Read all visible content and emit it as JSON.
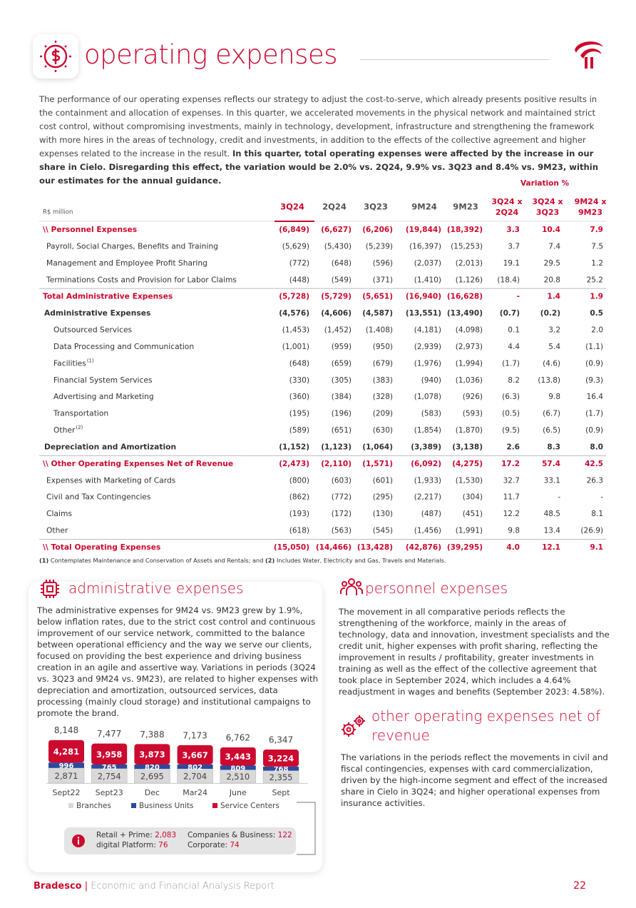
{
  "header": {
    "title": "operating expenses"
  },
  "intro": {
    "text": "The performance of our operating expenses reflects our strategy to adjust the cost-to-serve, which already presents positive results in the containment and allocation of expenses. In this quarter, we accelerated movements in the physical network and maintained strict cost control, without compromising investments, mainly in technology, development, infrastructure and strengthening the framework with more hires in the areas of technology, credit and investments, in addition to the effects of the collective agreement and higher expenses related to the increase in the result.",
    "bold": "In this quarter, total operating expenses were affected by the increase in our share in Cielo. Disregarding this effect, the variation would be 2.0% vs. 2Q24, 9.9% vs. 3Q23 and 8.4% vs. 9M23, within our estimates for the annual guidance."
  },
  "table": {
    "unit": "R$ million",
    "variation_label": "Variation %",
    "columns": [
      "3Q24",
      "2Q24",
      "3Q23",
      "9M24",
      "9M23"
    ],
    "variation_columns": [
      [
        "3Q24 x",
        "2Q24"
      ],
      [
        "3Q24 x",
        "3Q23"
      ],
      [
        "9M24 x",
        "9M23"
      ]
    ],
    "rows": [
      {
        "label": "\\\\ Personnel Expenses",
        "level": "section",
        "values": [
          "(6,849)",
          "(6,627)",
          "(6,206)",
          "(19,844)",
          "(18,392)",
          "3.3",
          "10.4",
          "7.9"
        ]
      },
      {
        "label": "Payroll, Social Charges, Benefits and Training",
        "level": "item",
        "values": [
          "(5,629)",
          "(5,430)",
          "(5,239)",
          "(16,397)",
          "(15,253)",
          "3.7",
          "7.4",
          "7.5"
        ]
      },
      {
        "label": "Management and Employee Profit Sharing",
        "level": "item",
        "values": [
          "(772)",
          "(648)",
          "(596)",
          "(2,037)",
          "(2,013)",
          "19.1",
          "29.5",
          "1.2"
        ]
      },
      {
        "label": "Terminations Costs and Provision for Labor Claims",
        "level": "item",
        "values": [
          "(448)",
          "(549)",
          "(371)",
          "(1,410)",
          "(1,126)",
          "(18.4)",
          "20.8",
          "25.2"
        ]
      },
      {
        "label": "Total Administrative Expenses",
        "level": "total",
        "values": [
          "(5,728)",
          "(5,729)",
          "(5,651)",
          "(16,940)",
          "(16,628)",
          "-",
          "1.4",
          "1.9"
        ]
      },
      {
        "label": "Administrative Expenses",
        "level": "group",
        "values": [
          "(4,576)",
          "(4,606)",
          "(4,587)",
          "(13,551)",
          "(13,490)",
          "(0.7)",
          "(0.2)",
          "0.5"
        ]
      },
      {
        "label": "Outsourced Services",
        "level": "subitem",
        "values": [
          "(1,453)",
          "(1,452)",
          "(1,408)",
          "(4,181)",
          "(4,098)",
          "0.1",
          "3.2",
          "2.0"
        ]
      },
      {
        "label": "Data Processing and Communication",
        "level": "subitem",
        "values": [
          "(1,001)",
          "(959)",
          "(950)",
          "(2,939)",
          "(2,973)",
          "4.4",
          "5.4",
          "(1.1)"
        ]
      },
      {
        "label": "Facilities",
        "note": "(1)",
        "level": "subitem",
        "values": [
          "(648)",
          "(659)",
          "(679)",
          "(1,976)",
          "(1,994)",
          "(1.7)",
          "(4.6)",
          "(0.9)"
        ]
      },
      {
        "label": "Financial System Services",
        "level": "subitem",
        "values": [
          "(330)",
          "(305)",
          "(383)",
          "(940)",
          "(1,036)",
          "8.2",
          "(13.8)",
          "(9.3)"
        ]
      },
      {
        "label": "Advertising and Marketing",
        "level": "subitem",
        "values": [
          "(360)",
          "(384)",
          "(328)",
          "(1,078)",
          "(926)",
          "(6.3)",
          "9.8",
          "16.4"
        ]
      },
      {
        "label": "Transportation",
        "level": "subitem",
        "values": [
          "(195)",
          "(196)",
          "(209)",
          "(583)",
          "(593)",
          "(0.5)",
          "(6.7)",
          "(1.7)"
        ]
      },
      {
        "label": "Other",
        "note": "(2)",
        "level": "subitem",
        "values": [
          "(589)",
          "(651)",
          "(630)",
          "(1,854)",
          "(1,870)",
          "(9.5)",
          "(6.5)",
          "(0.9)"
        ]
      },
      {
        "label": "Depreciation and Amortization",
        "level": "group",
        "values": [
          "(1,152)",
          "(1,123)",
          "(1,064)",
          "(3,389)",
          "(3,138)",
          "2.6",
          "8.3",
          "8.0"
        ]
      },
      {
        "label": "\\\\ Other Operating Expenses Net of Revenue",
        "level": "section",
        "values": [
          "(2,473)",
          "(2,110)",
          "(1,571)",
          "(6,092)",
          "(4,275)",
          "17.2",
          "57.4",
          "42.5"
        ]
      },
      {
        "label": "Expenses with Marketing of Cards",
        "level": "item",
        "values": [
          "(800)",
          "(603)",
          "(601)",
          "(1,933)",
          "(1,530)",
          "32.7",
          "33.1",
          "26.3"
        ]
      },
      {
        "label": "Civil and Tax Contingencies",
        "level": "item",
        "values": [
          "(862)",
          "(772)",
          "(295)",
          "(2,217)",
          "(304)",
          "11.7",
          "-",
          "-"
        ]
      },
      {
        "label": "Claims",
        "level": "item",
        "values": [
          "(193)",
          "(172)",
          "(130)",
          "(487)",
          "(451)",
          "12.2",
          "48.5",
          "8.1"
        ]
      },
      {
        "label": "Other",
        "level": "item",
        "values": [
          "(618)",
          "(563)",
          "(545)",
          "(1,456)",
          "(1,991)",
          "9.8",
          "13.4",
          "(26.9)"
        ]
      },
      {
        "label": "\\\\ Total Operating Expenses",
        "level": "section",
        "values": [
          "(15,050)",
          "(14,466)",
          "(13,428)",
          "(42,876)",
          "(39,295)",
          "4.0",
          "12.1",
          "9.1"
        ]
      }
    ],
    "footnote": [
      "(1)",
      " Contemplates Maintenance and Conservation of Assets and Rentals; and ",
      "(2)",
      " Includes Water, Electricity and Gas, Travels and Materials."
    ]
  },
  "administrative": {
    "title": "administrative expenses",
    "text": "The administrative expenses for 9M24 vs. 9M23 grew by 1.9%, below inflation rates, due to the strict cost control and continuous improvement of our service network, committed to the balance between operational efficiency and the way we serve our clients, focused on providing the best experience and driving business creation in an agile and assertive way. Variations in periods (3Q24 vs. 3Q23 and 9M24 vs. 9M23), are related to higher expenses with depreciation and amortization, outsourced services, data processing (mainly cloud storage) and institutional campaigns to promote the brand."
  },
  "chart_data": {
    "type": "stacked_bar",
    "categories": [
      "Sept22",
      "Sept23",
      "Dec",
      "Mar24",
      "June",
      "Sept"
    ],
    "series": [
      {
        "name": "Branches",
        "color": "#d9d9d9",
        "values": [
          2871,
          2754,
          2695,
          2704,
          2510,
          2355
        ],
        "value_labels": [
          "2,871",
          "2,754",
          "2,695",
          "2,704",
          "2,510",
          "2,355"
        ]
      },
      {
        "name": "Business Units",
        "color": "#2b4a9b",
        "values": [
          996,
          765,
          820,
          802,
          809,
          768
        ]
      },
      {
        "name": "Service Centers",
        "color": "#cc092f",
        "values": [
          4281,
          3958,
          3873,
          3667,
          3443,
          3224
        ],
        "value_labels": [
          "4,281",
          "3,958",
          "3,873",
          "3,667",
          "3,443",
          "3,224"
        ]
      }
    ],
    "totals": [
      8148,
      7477,
      7388,
      7173,
      6762,
      6347
    ],
    "totals_labels": [
      "8,148",
      "7,477",
      "7,388",
      "7,173",
      "6,762",
      "6,347"
    ]
  },
  "info_box": {
    "items": [
      {
        "label": "Retail + Prime:",
        "value": "2,083"
      },
      {
        "label": "digital Platform:",
        "value": "76"
      },
      {
        "label": "Companies & Business:",
        "value": "122"
      },
      {
        "label": "Corporate:",
        "value": "74"
      }
    ]
  },
  "personnel": {
    "title": "personnel expenses",
    "text": "The movement in all comparative periods reflects the strengthening of the workforce, mainly in the areas of technology, data and innovation, investment specialists and the credit unit, higher expenses with profit sharing, reflecting the improvement in results / profitability, greater investments in training as well as the effect of the collective agreement that took place in September 2024, which includes a 4.64% readjustment in wages and benefits (September 2023: 4.58%)."
  },
  "other": {
    "title": "other operating expenses net of revenue",
    "text": "The variations in the periods reflect the movements in civil and fiscal contingencies, expenses with card commercialization, driven by the high-income segment and effect of the increased share in Cielo in 3Q24; and higher operational expenses from insurance activities."
  },
  "footer": {
    "brand": "Bradesco",
    "report": "Economic and Financial Analysis Report",
    "page": "22"
  }
}
